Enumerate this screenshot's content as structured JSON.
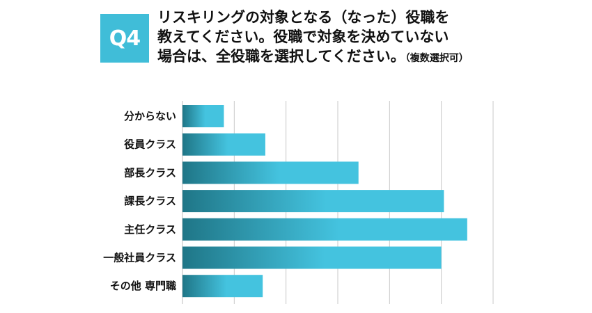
{
  "badge": "Q4",
  "question": {
    "line1": "リスキリングの対象となる（なった）役職を",
    "line2": "教えてください。役職で対象を決めていない",
    "line3": "場合は、全役職を選択してください。",
    "note": "（複数選択可）"
  },
  "colors": {
    "accent": "#40bdd8",
    "bar_dark": "#1f7687",
    "bar_light": "#44c3df",
    "grid": "#c8c8c8"
  },
  "chart_data": {
    "type": "bar",
    "orientation": "horizontal",
    "categories": [
      "分からない",
      "役員クラス",
      "部長クラス",
      "課長クラス",
      "主任クラス",
      "一般社員クラス",
      "その他 専門職"
    ],
    "values": [
      8,
      16,
      34,
      50.5,
      55,
      50,
      15.5
    ],
    "xlim": [
      0,
      60
    ],
    "grid": true,
    "title": "",
    "xlabel": "",
    "ylabel": ""
  }
}
